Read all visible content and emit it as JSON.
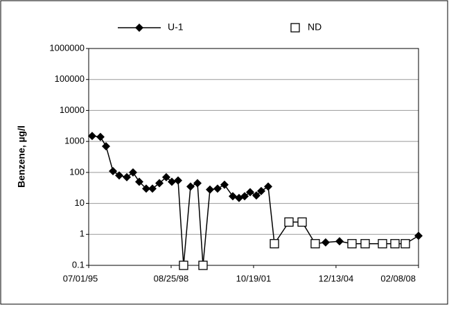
{
  "chart_data": {
    "type": "line",
    "x": [
      "1995-08-18",
      "1995-12-12",
      "1996-02-28",
      "1996-06-04",
      "1996-08-30",
      "1996-12-14",
      "1997-03-11",
      "1997-06-06",
      "1997-09-11",
      "1997-12-07",
      "1998-03-14",
      "1998-06-18",
      "1998-09-04",
      "1998-11-30",
      "1999-02-15",
      "1999-05-23",
      "1999-08-28",
      "1999-11-13",
      "2000-02-18",
      "2000-06-03",
      "2000-09-08",
      "2001-01-02",
      "2001-03-30",
      "2001-06-16",
      "2001-09-01",
      "2001-11-27",
      "2002-02-03",
      "2002-05-11",
      "2002-08-06",
      "2003-02-25",
      "2003-08-28",
      "2004-02-27",
      "2004-07-21",
      "2005-01-31",
      "2005-07-24",
      "2006-01-24",
      "2006-09-23",
      "2007-03-16",
      "2007-08-08",
      "2008-02-08"
    ],
    "series": [
      {
        "name": "U-1",
        "color": "#000000",
        "marker": "diamond",
        "values": [
          1500,
          1400,
          700,
          110,
          80,
          70,
          100,
          50,
          30,
          30,
          45,
          70,
          50,
          55,
          null,
          35,
          45,
          null,
          28,
          30,
          40,
          17,
          15,
          17,
          23,
          18,
          25,
          35,
          null,
          null,
          null,
          null,
          0.55,
          0.6,
          null,
          null,
          null,
          null,
          null,
          0.9
        ]
      },
      {
        "name": "ND",
        "color": "#000000",
        "marker": "square-open",
        "values": [
          null,
          null,
          null,
          null,
          null,
          null,
          null,
          null,
          null,
          null,
          null,
          null,
          null,
          null,
          0.1,
          null,
          null,
          0.1,
          null,
          null,
          null,
          null,
          null,
          null,
          null,
          null,
          null,
          null,
          0.5,
          2.5,
          2.5,
          0.5,
          null,
          null,
          0.5,
          0.5,
          0.5,
          0.5,
          0.5,
          null
        ]
      }
    ],
    "ylabel": "Benzene, µg/l",
    "ylog": true,
    "ylim": [
      0.1,
      1000000
    ],
    "yticks": [
      0.1,
      1,
      10,
      100,
      1000,
      10000,
      100000,
      1000000
    ],
    "xlim": [
      "1995-07-01",
      "2008-02-08"
    ],
    "xticks": [
      {
        "value": "1995-07-01",
        "label": "07/01/95"
      },
      {
        "value": "1998-08-25",
        "label": "08/25/98"
      },
      {
        "value": "2001-10-19",
        "label": "10/19/01"
      },
      {
        "value": "2004-12-13",
        "label": "12/13/04"
      },
      {
        "value": "2008-02-08",
        "label": "02/08/08"
      }
    ],
    "grid": true,
    "legend": "top"
  }
}
